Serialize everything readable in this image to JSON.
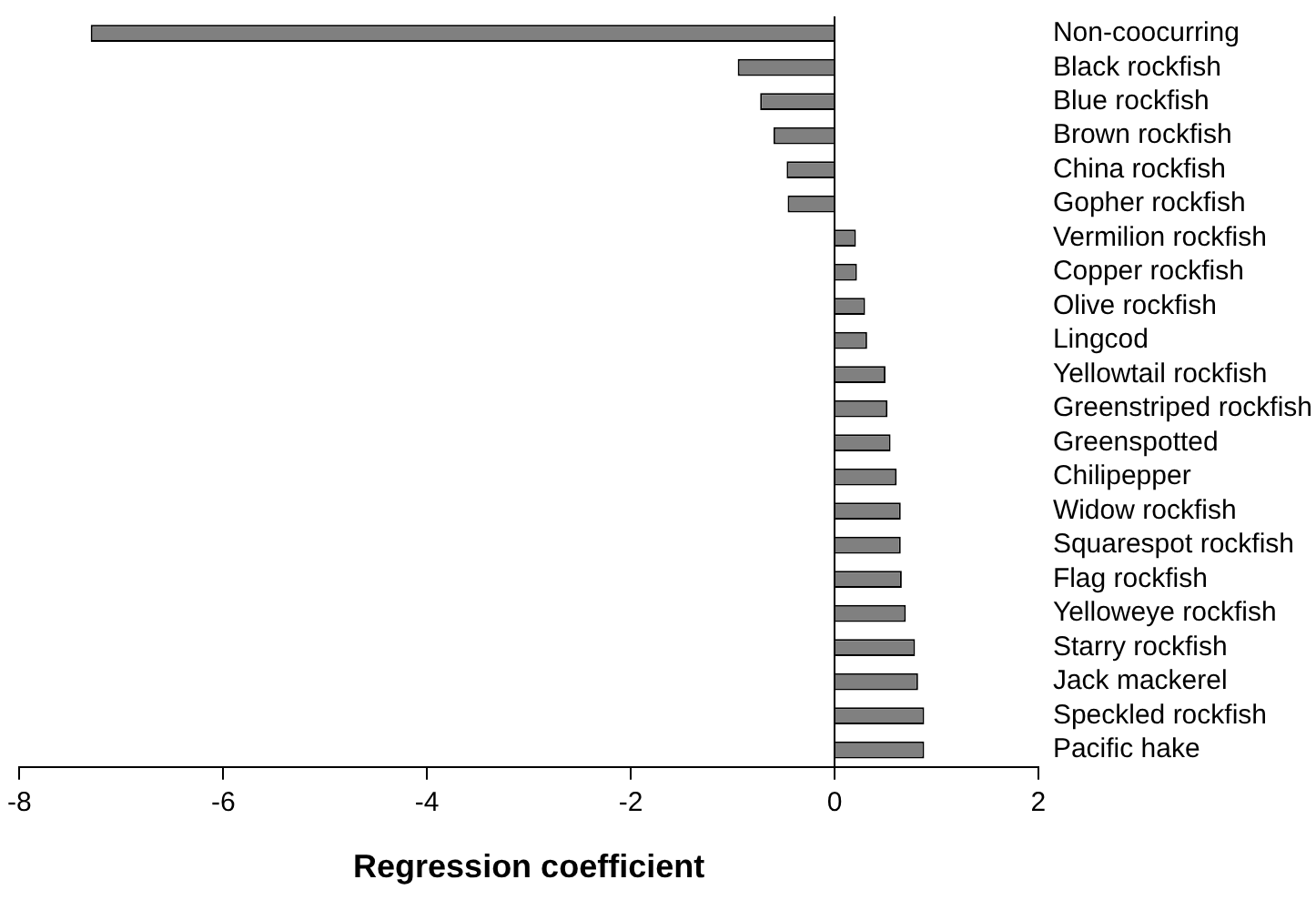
{
  "chart_data": {
    "type": "bar",
    "orientation": "horizontal",
    "xlabel": "Regression coefficient",
    "categories": [
      "Non-coocurring",
      "Black rockfish",
      "Blue rockfish",
      "Brown rockfish",
      "China rockfish",
      "Gopher rockfish",
      "Vermilion rockfish",
      "Copper rockfish",
      "Olive rockfish",
      "Lingcod",
      "Yellowtail rockfish",
      "Greenstriped rockfish",
      "Greenspotted",
      "Chilipepper",
      "Widow rockfish",
      "Squarespot rockfish",
      "Flag rockfish",
      "Yelloweye rockfish",
      "Starry rockfish",
      "Jack mackerel",
      "Speckled rockfish",
      "Pacific hake"
    ],
    "values": [
      -7.3,
      -0.95,
      -0.73,
      -0.6,
      -0.47,
      -0.46,
      0.21,
      0.22,
      0.3,
      0.32,
      0.5,
      0.52,
      0.55,
      0.61,
      0.65,
      0.65,
      0.66,
      0.7,
      0.79,
      0.82,
      0.88,
      0.88
    ],
    "color": "#808080",
    "xlim": [
      -8,
      2
    ],
    "xticks": [
      -8,
      -6,
      -4,
      -2,
      0,
      2
    ],
    "grid": false,
    "ref_lines": [
      {
        "axis": "x",
        "value": 0,
        "color": "#000000"
      }
    ],
    "legend": false
  }
}
